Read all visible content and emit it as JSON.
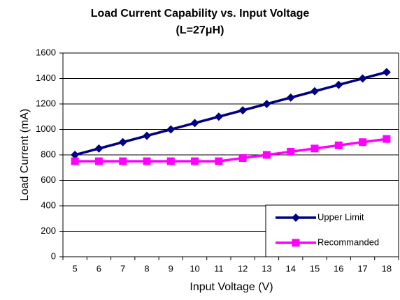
{
  "chart_data": {
    "type": "line",
    "title": "Load Current Capability vs. Input Voltage",
    "subtitle": "(L=27μH)",
    "x_label": "Input Voltage (V)",
    "y_label": "Load Current (mA)",
    "categories": [
      5,
      6,
      7,
      8,
      9,
      10,
      11,
      12,
      13,
      14,
      15,
      16,
      17,
      18
    ],
    "series": [
      {
        "name": "Upper Limit",
        "color": "#000080",
        "marker": "diamond",
        "values": [
          800,
          850,
          900,
          950,
          1000,
          1050,
          1100,
          1150,
          1200,
          1250,
          1300,
          1350,
          1400,
          1450
        ]
      },
      {
        "name": "Recommanded",
        "color": "#ff00ff",
        "marker": "square",
        "values": [
          750,
          750,
          750,
          750,
          750,
          750,
          750,
          775,
          800,
          825,
          850,
          875,
          900,
          925
        ]
      }
    ],
    "ylim": [
      0,
      1600
    ],
    "yticks": [
      0,
      200,
      400,
      600,
      800,
      1000,
      1200,
      1400,
      1600
    ],
    "grid": true,
    "legend": "lower right"
  }
}
